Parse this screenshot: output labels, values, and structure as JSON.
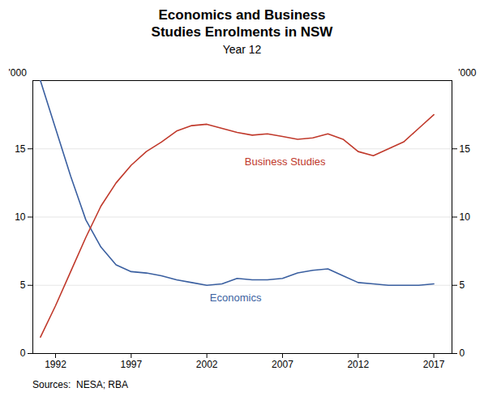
{
  "chart_data": {
    "type": "line",
    "title": "Economics and Business\nStudies Enrolments in NSW",
    "subtitle": "Year 12",
    "source": "Sources:  NESA; RBA",
    "ylabel": "'000",
    "y2label": "'000",
    "x": [
      1991,
      1992,
      1993,
      1994,
      1995,
      1996,
      1997,
      1998,
      1999,
      2000,
      2001,
      2002,
      2003,
      2004,
      2005,
      2006,
      2007,
      2008,
      2009,
      2010,
      2011,
      2012,
      2013,
      2014,
      2015,
      2016,
      2017
    ],
    "series": [
      {
        "name": "Economics",
        "color": "#3a5fa0",
        "values": [
          20.0,
          16.5,
          13.0,
          9.8,
          7.8,
          6.5,
          6.0,
          5.9,
          5.7,
          5.4,
          5.2,
          5.0,
          5.1,
          5.5,
          5.4,
          5.4,
          5.5,
          5.9,
          6.1,
          6.2,
          5.7,
          5.2,
          5.1,
          5.0,
          5.0,
          5.0,
          5.1
        ]
      },
      {
        "name": "Business Studies",
        "color": "#c0392b",
        "values": [
          1.2,
          3.5,
          6.0,
          8.5,
          10.8,
          12.5,
          13.8,
          14.8,
          15.5,
          16.3,
          16.7,
          16.8,
          16.5,
          16.2,
          16.0,
          16.1,
          15.9,
          15.7,
          15.8,
          16.1,
          15.7,
          14.8,
          14.5,
          15.0,
          15.5,
          16.5,
          17.5
        ]
      }
    ],
    "xlim": [
      1990.5,
      2018.2
    ],
    "xticks": [
      1992,
      1997,
      2002,
      2007,
      2012,
      2017
    ],
    "ylim": [
      0,
      20
    ],
    "yticks": [
      0,
      5,
      10,
      15
    ],
    "y2lim": [
      0,
      20
    ],
    "y2ticks": [
      0,
      5,
      10,
      15
    ],
    "grid": true,
    "annotations": [
      {
        "text": "Business Studies",
        "x": 2004.5,
        "y": 13.8,
        "color": "#c0392b"
      },
      {
        "text": "Economics",
        "x": 2002.2,
        "y": 3.8,
        "color": "#3a5fa0"
      }
    ]
  }
}
